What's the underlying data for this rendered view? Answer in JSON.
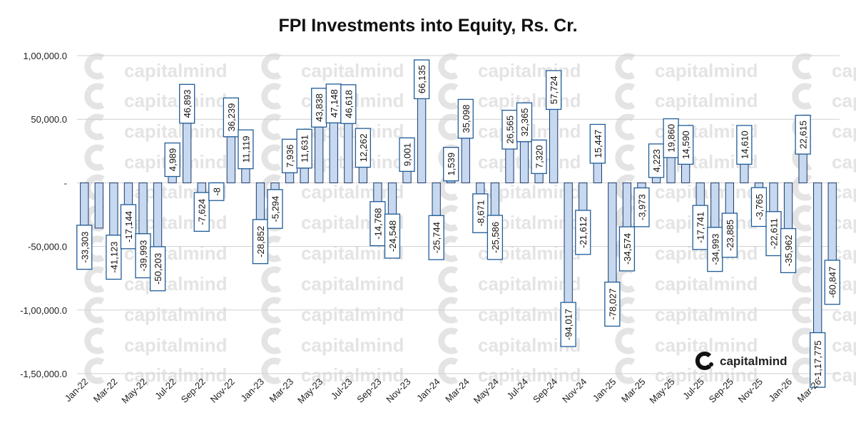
{
  "chart_data": {
    "type": "bar",
    "title": "FPI Investments into Equity, Rs. Cr.",
    "xlabel": "",
    "ylabel": "",
    "ylim": [
      -150000,
      100000
    ],
    "yticks": [
      100000,
      50000,
      0,
      -50000,
      -100000,
      -150000
    ],
    "ytick_labels": [
      "1,00,000.0",
      "50,000.0",
      "-",
      "-50,000.0",
      "-1,00,000.0",
      "-1,50,000.0"
    ],
    "grid": true,
    "legend": "none",
    "bar_color": "#c6d9f1",
    "bar_edge_color": "#1f3864",
    "label_box_color": "#1f5c99",
    "categories": [
      "Jan-22",
      "Feb-22",
      "Mar-22",
      "Apr-22",
      "May-22",
      "Jun-22",
      "Jul-22",
      "Aug-22",
      "Sep-22",
      "Oct-22",
      "Nov-22",
      "Dec-22",
      "Jan-23",
      "Feb-23",
      "Mar-23",
      "Apr-23",
      "May-23",
      "Jun-23",
      "Jul-23",
      "Aug-23",
      "Sep-23",
      "Oct-23",
      "Nov-23",
      "Dec-23",
      "Jan-24",
      "Feb-24",
      "Mar-24",
      "Apr-24",
      "May-24",
      "Jun-24",
      "Jul-24",
      "Aug-24",
      "Sep-24",
      "Oct-24",
      "Nov-24",
      "Dec-24",
      "Jan-25",
      "Feb-25",
      "Mar-25",
      "Apr-25",
      "May-25",
      "Jun-25",
      "Jul-25",
      "Aug-25",
      "Sep-25",
      "Oct-25",
      "Nov-25",
      "Dec-25",
      "Jan-26",
      "Feb-26",
      "Mar-26",
      "Apr-26"
    ],
    "values": [
      -33303,
      -35592,
      -41123,
      -17144,
      -39993,
      -50203,
      4989,
      46893,
      -7624,
      -8,
      36239,
      11119,
      -28852,
      -5294,
      7936,
      11631,
      43838,
      47148,
      46618,
      12262,
      -14768,
      -24548,
      9001,
      66135,
      -25744,
      1539,
      35098,
      -8671,
      -25586,
      26565,
      32365,
      7320,
      57724,
      -94017,
      -21612,
      15447,
      -78027,
      -34574,
      -3973,
      4223,
      19860,
      14590,
      -17741,
      -34993,
      -23885,
      14610,
      -3765,
      -22611,
      -35962,
      22615,
      -117775,
      -60847
    ],
    "data_labels": [
      "-33,303",
      "",
      "-41,123",
      "-17,144",
      "-39,993",
      "-50,203",
      "4,989",
      "46,893",
      "-7,624",
      "-8",
      "36,239",
      "11,119",
      "-28,852",
      "-5,294",
      "7,936",
      "11,631",
      "43,838",
      "47,148",
      "46,618",
      "12,262",
      "-14,768",
      "-24,548",
      "9,001",
      "66,135",
      "-25,744",
      "1,539",
      "35,098",
      "-8,671",
      "-25,586",
      "26,565",
      "32,365",
      "7,320",
      "57,724",
      "-94,017",
      "-21,612",
      "15,447",
      "-78,027",
      "-34,574",
      "-3,973",
      "4,223",
      "19,860",
      "14,590",
      "-17,741",
      "-34,993",
      "-23,885",
      "14,610",
      "-3,765",
      "-22,611",
      "-35,962",
      "22,615",
      "-1,17,775",
      "-60,847"
    ],
    "xtick_labels": [
      "Jan-22",
      "Mar-22",
      "May-22",
      "Jul-22",
      "Sep-22",
      "Nov-22",
      "Jan-23",
      "Mar-23",
      "May-23",
      "Jul-23",
      "Sep-23",
      "Nov-23",
      "Jan-24",
      "Mar-24",
      "May-24",
      "Jul-24",
      "Sep-24",
      "Nov-24",
      "Jan-25",
      "Mar-25",
      "May-25",
      "Jul-25",
      "Sep-25",
      "Nov-25",
      "Jan-26",
      "Mar-26"
    ]
  },
  "watermark": {
    "text": "capitalmind",
    "icon": "capitalmind-c-icon"
  },
  "logo": {
    "text": "capitalmind",
    "icon": "capitalmind-c-icon"
  }
}
